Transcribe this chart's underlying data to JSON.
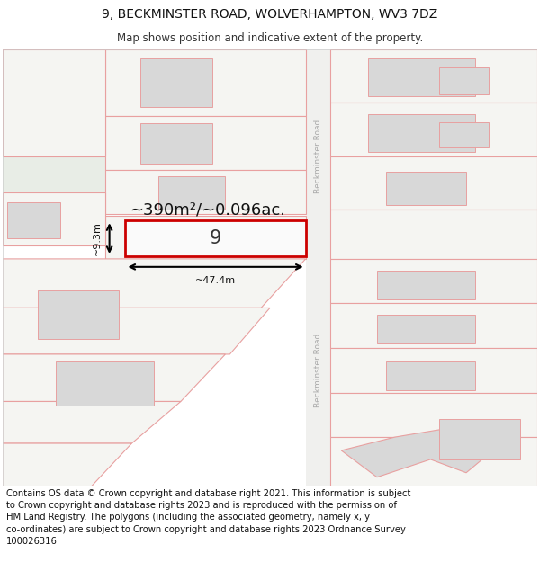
{
  "title": "9, BECKMINSTER ROAD, WOLVERHAMPTON, WV3 7DZ",
  "subtitle": "Map shows position and indicative extent of the property.",
  "footer": "Contains OS data © Crown copyright and database right 2021. This information is subject\nto Crown copyright and database rights 2023 and is reproduced with the permission of\nHM Land Registry. The polygons (including the associated geometry, namely x, y\nco-ordinates) are subject to Crown copyright and database rights 2023 Ordnance Survey\n100026316.",
  "area_text": "~390m²/~0.096ac.",
  "width_text": "~47.4m",
  "height_text": "~9.3m",
  "property_number": "9",
  "road_label": "Beckminster Road",
  "map_bg": "#f5f5f2",
  "green_color": "#e8ede8",
  "plot_line_color": "#cc0000",
  "other_plot_color": "#e8a0a0",
  "gray_box_color": "#d8d8d8",
  "title_fontsize": 10,
  "subtitle_fontsize": 8.5,
  "footer_fontsize": 7.2
}
